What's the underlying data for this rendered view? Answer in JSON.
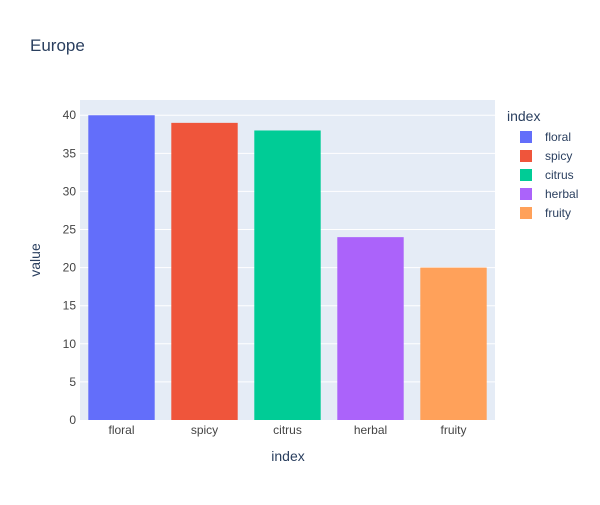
{
  "chart_data": {
    "type": "bar",
    "title": "Europe",
    "xlabel": "index",
    "ylabel": "value",
    "categories": [
      "floral",
      "spicy",
      "citrus",
      "herbal",
      "fruity"
    ],
    "values": [
      40,
      39,
      38,
      24,
      20
    ],
    "colors": [
      "#636efa",
      "#EF553B",
      "#00cc96",
      "#ab63fa",
      "#FFA15A"
    ],
    "ylim": [
      0,
      42
    ],
    "yticks": [
      0,
      5,
      10,
      15,
      20,
      25,
      30,
      35,
      40
    ],
    "grid": true,
    "legend": {
      "title": "index",
      "placement": "right",
      "entries": [
        "floral",
        "spicy",
        "citrus",
        "herbal",
        "fruity"
      ]
    }
  },
  "style": {
    "plot_background": "#e5ecf6",
    "gridline_color": "#ffffff",
    "text_color": "#2a3f5f",
    "tick_text_color": "#444444"
  }
}
